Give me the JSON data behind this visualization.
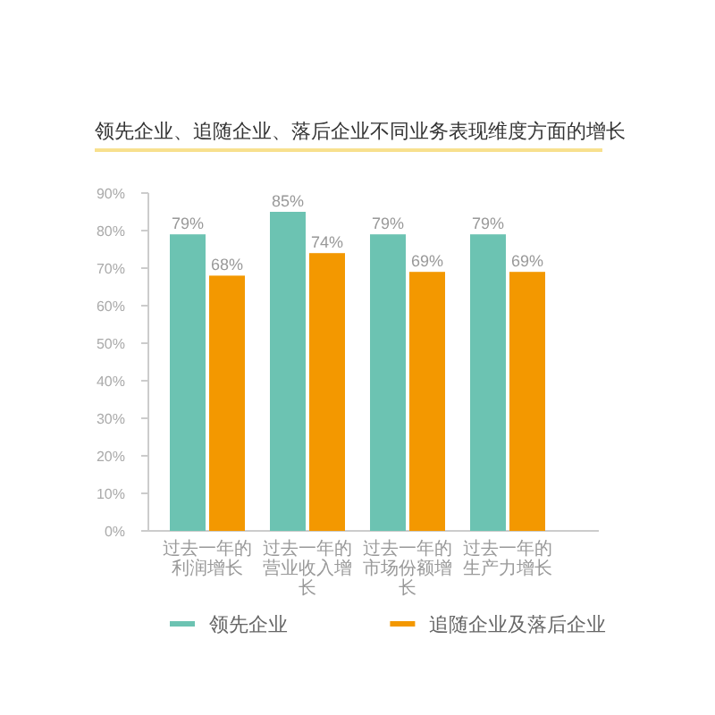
{
  "chart_data": {
    "type": "bar",
    "title": "领先企业、追随企业、落后企业不同业务表现维度方面的增长",
    "categories": [
      "过去一年的利润增长",
      "过去一年的营业收入增长",
      "过去一年的市场份额增长",
      "过去一年的生产力增长"
    ],
    "series": [
      {
        "name": "领先企业",
        "color": "#6cc3b2",
        "values": [
          79,
          85,
          79,
          79
        ],
        "value_labels": [
          "79%",
          "85%",
          "79%",
          "79%"
        ]
      },
      {
        "name": "追随企业及落后企业",
        "color": "#f39800",
        "values": [
          68,
          74,
          69,
          69
        ],
        "value_labels": [
          "68%",
          "74%",
          "69%",
          "69%"
        ]
      }
    ],
    "ylim": [
      0,
      90
    ],
    "yticks": [
      {
        "value": 0,
        "label": "0%"
      },
      {
        "value": 10,
        "label": "10%"
      },
      {
        "value": 20,
        "label": "20%"
      },
      {
        "value": 30,
        "label": "30%"
      },
      {
        "value": 40,
        "label": "40%"
      },
      {
        "value": 50,
        "label": "50%"
      },
      {
        "value": 60,
        "label": "60%"
      },
      {
        "value": 70,
        "label": "70%"
      },
      {
        "value": 80,
        "label": "80%"
      },
      {
        "value": 90,
        "label": "90%"
      }
    ],
    "legend": "bottom"
  }
}
